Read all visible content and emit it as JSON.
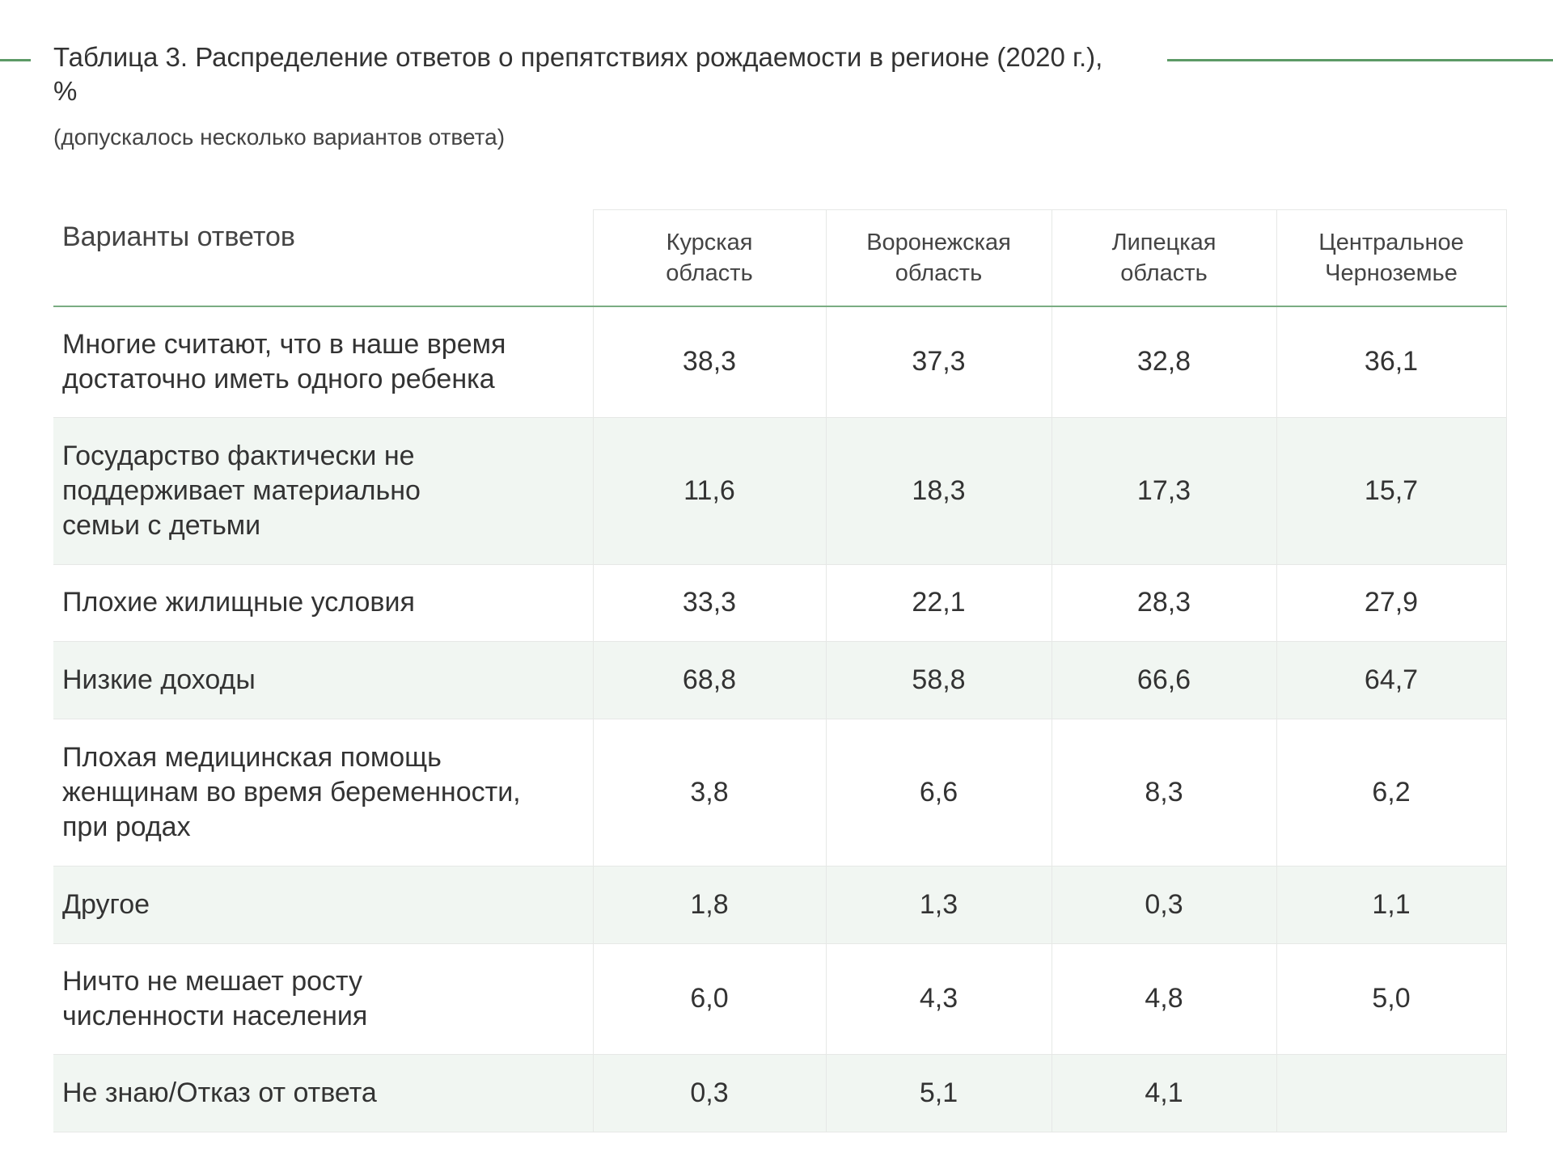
{
  "title": "Таблица 3. Распределение ответов о препятствиях рождаемости в регионе (2020 г.), %",
  "subtitle": "(допускалось несколько вариантов ответа)",
  "table": {
    "headers": [
      "Варианты ответов",
      "Курская область",
      "Воронежская область",
      "Липецкая область",
      "Центральное Черноземье"
    ],
    "rows": [
      {
        "label": "Многие считают, что в наше время достаточно иметь одного ребенка",
        "values": [
          "38,3",
          "37,3",
          "32,8",
          "36,1"
        ]
      },
      {
        "label": "Государство фактически не поддерживает материально семьи с детьми",
        "values": [
          "11,6",
          "18,3",
          "17,3",
          "15,7"
        ]
      },
      {
        "label": "Плохие жилищные условия",
        "values": [
          "33,3",
          "22,1",
          "28,3",
          "27,9"
        ]
      },
      {
        "label": "Низкие доходы",
        "values": [
          "68,8",
          "58,8",
          "66,6",
          "64,7"
        ]
      },
      {
        "label": "Плохая медицинская помощь женщинам во время беременности, при родах",
        "values": [
          "3,8",
          "6,6",
          "8,3",
          "6,2"
        ]
      },
      {
        "label": "Другое",
        "values": [
          "1,8",
          "1,3",
          "0,3",
          "1,1"
        ]
      },
      {
        "label": "Ничто не мешает росту численности населения",
        "values": [
          "6,0",
          "4,3",
          "4,8",
          "5,0"
        ]
      },
      {
        "label": "Не знаю/Отказ от ответа",
        "values": [
          "0,3",
          "5,1",
          "4,1",
          ""
        ]
      }
    ]
  }
}
